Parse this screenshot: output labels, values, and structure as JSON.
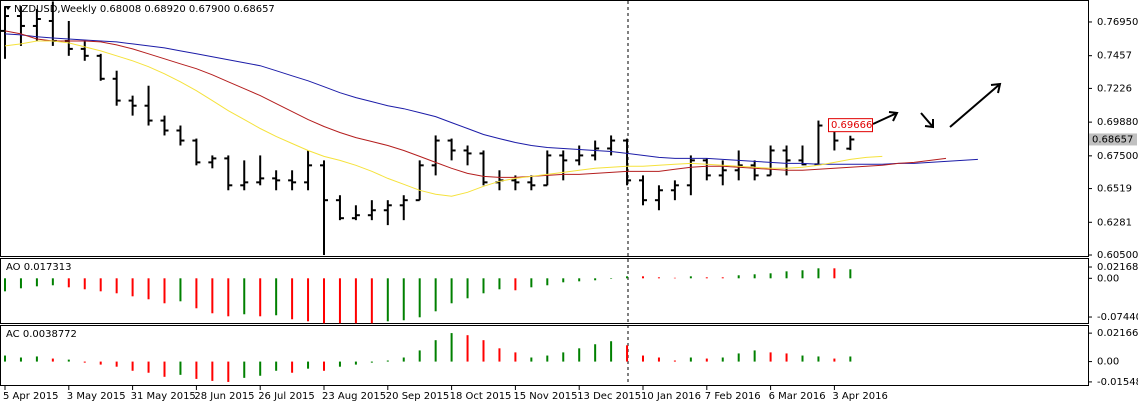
{
  "chart_data": [
    {
      "type": "ohlc",
      "title": "NZDUSD,Weekly  0.68008 0.68920 0.67900 0.68657",
      "bar_color": "#000000",
      "categories": [
        "5 Apr 2015",
        null,
        null,
        null,
        "3 May 2015",
        null,
        null,
        null,
        "31 May 2015",
        null,
        null,
        null,
        "28 Jun 2015",
        null,
        null,
        null,
        "26 Jul 2015",
        null,
        null,
        null,
        "23 Aug 2015",
        null,
        null,
        null,
        "20 Sep 2015",
        null,
        null,
        null,
        "18 Oct 2015",
        null,
        null,
        null,
        "15 Nov 2015",
        null,
        null,
        null,
        "13 Dec 2015",
        null,
        null,
        null,
        "10 Jan 2016",
        null,
        null,
        null,
        "7 Feb 2016",
        null,
        null,
        null,
        "6 Mar 2016",
        null,
        null,
        null,
        "3 Apr 2016",
        null,
        null,
        null,
        null,
        null,
        null,
        null,
        null,
        null
      ],
      "open": [
        0.7632,
        0.7737,
        0.7667,
        0.7702,
        0.7561,
        0.7505,
        0.7456,
        0.7294,
        0.714,
        0.7104,
        0.6999,
        0.6929,
        0.6858,
        0.6704,
        0.6732,
        0.6542,
        0.6563,
        0.6591,
        0.6577,
        0.6563,
        0.6683,
        0.6437,
        0.631,
        0.6331,
        0.6366,
        0.6401,
        0.6437,
        0.6683,
        0.6858,
        0.6788,
        0.6767,
        0.6563,
        0.6577,
        0.6563,
        0.6542,
        0.6753,
        0.6718,
        0.6753,
        0.6802,
        0.6858,
        0.6577,
        0.6437,
        0.6507,
        0.6542,
        0.6718,
        0.6612,
        0.6648,
        0.6683,
        0.6612,
        0.6788,
        0.6718,
        0.669,
        0.6964,
        0.68008,
        null,
        null,
        null,
        null,
        null,
        null,
        null,
        null
      ],
      "high": [
        0.7807,
        0.7807,
        0.7786,
        0.784,
        0.7702,
        0.7561,
        0.747,
        0.7351,
        0.7175,
        0.7245,
        0.7034,
        0.6964,
        0.6872,
        0.6753,
        0.6753,
        0.6718,
        0.6753,
        0.6648,
        0.6648,
        0.6788,
        0.6718,
        0.6472,
        0.6401,
        0.6437,
        0.6437,
        0.6472,
        0.6718,
        0.6894,
        0.6872,
        0.6823,
        0.6788,
        0.6648,
        0.6612,
        0.6612,
        0.6788,
        0.6788,
        0.6823,
        0.6858,
        0.6894,
        0.6872,
        0.6612,
        0.6542,
        0.6577,
        0.6753,
        0.6732,
        0.6718,
        0.6788,
        0.6718,
        0.6823,
        0.6823,
        0.6823,
        0.6999,
        0.6985,
        0.6892,
        null,
        null,
        null,
        null,
        null,
        null,
        null,
        null
      ],
      "low": [
        0.7435,
        0.7526,
        0.7561,
        0.7526,
        0.7456,
        0.7421,
        0.728,
        0.7104,
        0.7034,
        0.6964,
        0.6894,
        0.6823,
        0.6683,
        0.6662,
        0.6507,
        0.6507,
        0.6542,
        0.6507,
        0.6507,
        0.6507,
        0.605,
        0.6296,
        0.6296,
        0.6296,
        0.6261,
        0.6296,
        0.6437,
        0.6612,
        0.6718,
        0.6683,
        0.6542,
        0.6507,
        0.6507,
        0.6507,
        0.6542,
        0.6577,
        0.6683,
        0.6718,
        0.6753,
        0.6542,
        0.6401,
        0.6366,
        0.6437,
        0.6472,
        0.6577,
        0.6542,
        0.6577,
        0.6577,
        0.6612,
        0.6612,
        0.6683,
        0.6683,
        0.6788,
        0.679,
        null,
        null,
        null,
        null,
        null,
        null,
        null,
        null
      ],
      "close": [
        0.7737,
        0.7667,
        0.7716,
        0.7561,
        0.7505,
        0.7456,
        0.7294,
        0.714,
        0.7104,
        0.6999,
        0.6929,
        0.6858,
        0.6704,
        0.6732,
        0.6542,
        0.6563,
        0.6591,
        0.6577,
        0.6563,
        0.6683,
        0.6437,
        0.631,
        0.6331,
        0.6366,
        0.6401,
        0.6437,
        0.6683,
        0.6858,
        0.6788,
        0.6767,
        0.6563,
        0.6577,
        0.6563,
        0.6542,
        0.6753,
        0.6718,
        0.6753,
        0.6802,
        0.6858,
        0.6577,
        0.6437,
        0.6507,
        0.6542,
        0.6718,
        0.6612,
        0.6648,
        0.6683,
        0.6612,
        0.6788,
        0.6718,
        0.669,
        0.6964,
        0.6858,
        0.68657,
        null,
        null,
        null,
        null,
        null,
        null,
        null,
        null
      ],
      "lines": [
        {
          "color": "#1c1ca8",
          "values": [
            0.7611,
            0.7604,
            0.759,
            0.7582,
            0.7575,
            0.7568,
            0.7561,
            0.7554,
            0.754,
            0.7526,
            0.7512,
            0.7491,
            0.747,
            0.7449,
            0.7428,
            0.7407,
            0.7386,
            0.7351,
            0.7315,
            0.728,
            0.7238,
            0.7196,
            0.7161,
            0.7133,
            0.7104,
            0.7083,
            0.7055,
            0.7027,
            0.6985,
            0.6943,
            0.6901,
            0.6872,
            0.6844,
            0.6823,
            0.6809,
            0.6802,
            0.6795,
            0.6788,
            0.6781,
            0.6767,
            0.6753,
            0.6739,
            0.6732,
            0.6732,
            0.6732,
            0.6725,
            0.6718,
            0.6711,
            0.6704,
            0.6697,
            0.6697,
            0.669,
            0.669,
            0.669,
            0.669,
            0.669,
            0.6697,
            0.6697,
            0.6704,
            0.6711,
            0.6718,
            0.6725
          ]
        },
        {
          "color": "#b41e1e",
          "values": [
            0.7632,
            0.7611,
            0.7575,
            0.7561,
            0.7561,
            0.7561,
            0.7554,
            0.7533,
            0.7505,
            0.747,
            0.7435,
            0.74,
            0.7365,
            0.7322,
            0.7273,
            0.7224,
            0.7175,
            0.7119,
            0.7062,
            0.7006,
            0.6957,
            0.6915,
            0.6879,
            0.6851,
            0.6823,
            0.6788,
            0.6746,
            0.6704,
            0.6662,
            0.6626,
            0.6605,
            0.6598,
            0.6598,
            0.6605,
            0.6612,
            0.6619,
            0.6619,
            0.6626,
            0.6633,
            0.664,
            0.664,
            0.664,
            0.6655,
            0.6669,
            0.6676,
            0.6676,
            0.6669,
            0.6662,
            0.6655,
            0.6648,
            0.6648,
            0.6655,
            0.6662,
            0.6669,
            0.6676,
            0.6683,
            0.6697,
            0.6704,
            0.6718,
            0.6732,
            null,
            null
          ]
        },
        {
          "color": "#f5e23c",
          "values": [
            0.7526,
            0.754,
            0.7561,
            0.7561,
            0.7547,
            0.7519,
            0.7491,
            0.7456,
            0.7421,
            0.7379,
            0.7329,
            0.7273,
            0.721,
            0.714,
            0.7069,
            0.7006,
            0.6943,
            0.6887,
            0.6837,
            0.6788,
            0.6746,
            0.6718,
            0.6683,
            0.6641,
            0.6591,
            0.6549,
            0.6507,
            0.6479,
            0.6465,
            0.6493,
            0.6535,
            0.657,
            0.6591,
            0.6605,
            0.6619,
            0.6633,
            0.6648,
            0.6662,
            0.6669,
            0.6676,
            0.6676,
            0.6683,
            0.669,
            0.6697,
            0.669,
            0.6683,
            0.6676,
            0.6669,
            0.6662,
            0.6662,
            0.6669,
            0.6683,
            0.6704,
            0.6725,
            0.6739,
            0.6746,
            null,
            null,
            null,
            null,
            null,
            null
          ]
        }
      ],
      "ylim": [
        0.6036,
        0.7843
      ],
      "yticks": [
        {
          "value": 0.7695,
          "label": "0.76950"
        },
        0.7457,
        0.7226,
        {
          "value": 0.6988,
          "label": "0.69880"
        },
        {
          "value": 0.675,
          "label": "0.67500"
        },
        0.6519,
        0.6281,
        {
          "value": 0.605,
          "label": "0.60500"
        }
      ],
      "last_price": 0.68657,
      "marked_price": 0.69666
    },
    {
      "type": "bar",
      "title": "AO 0.017313",
      "values": [
        -0.025,
        -0.0192,
        -0.0154,
        -0.0134,
        -0.0173,
        -0.0211,
        -0.025,
        -0.0288,
        -0.0346,
        -0.0403,
        -0.048,
        -0.0442,
        -0.0576,
        -0.0672,
        -0.073,
        -0.0691,
        -0.073,
        -0.071,
        -0.0787,
        -0.0826,
        -0.0864,
        -0.0864,
        -0.0864,
        -0.0864,
        -0.0826,
        -0.0806,
        -0.0749,
        -0.0634,
        -0.048,
        -0.0384,
        -0.0288,
        -0.0211,
        -0.023,
        -0.0173,
        -0.0134,
        -0.0077,
        -0.0058,
        -0.0038,
        -0.001,
        0.0038,
        0.0038,
        0.0019,
        0.001,
        0.0038,
        0.0019,
        0.0019,
        0.0058,
        0.0077,
        0.0096,
        0.0134,
        0.0154,
        0.0192,
        0.0192,
        0.017313
      ],
      "colors": [
        "#008000",
        "#008000",
        "#008000",
        "#008000",
        "#ff0000",
        "#ff0000",
        "#ff0000",
        "#ff0000",
        "#ff0000",
        "#ff0000",
        "#ff0000",
        "#008000",
        "#ff0000",
        "#ff0000",
        "#ff0000",
        "#008000",
        "#ff0000",
        "#008000",
        "#ff0000",
        "#ff0000",
        "#ff0000",
        "#ff0000",
        "#ff0000",
        "#ff0000",
        "#008000",
        "#008000",
        "#008000",
        "#008000",
        "#008000",
        "#008000",
        "#008000",
        "#008000",
        "#ff0000",
        "#008000",
        "#008000",
        "#008000",
        "#008000",
        "#008000",
        "#008000",
        "#008000",
        "#ff0000",
        "#ff0000",
        "#ff0000",
        "#008000",
        "#ff0000",
        "#ff0000",
        "#008000",
        "#008000",
        "#008000",
        "#008000",
        "#008000",
        "#008000",
        "#ff0000",
        "#008000"
      ],
      "ylim": [
        -0.0878,
        0.0371
      ],
      "yticks": [
        0.02168,
        {
          "value": 0,
          "label": "0.00"
        },
        {
          "value": -0.0744,
          "label": "-0.07440"
        }
      ]
    },
    {
      "type": "bar",
      "title": "AC 0.0038772",
      "values": [
        0.0046,
        0.0031,
        0.0039,
        0.0023,
        0.0015,
        -0.0008,
        -0.0023,
        -0.0039,
        -0.007,
        -0.0085,
        -0.0116,
        -0.0101,
        -0.0132,
        -0.0147,
        -0.0155,
        -0.0124,
        -0.0108,
        -0.007,
        -0.0085,
        -0.0054,
        -0.007,
        -0.0039,
        -0.0023,
        -0.0008,
        0.0008,
        0.0031,
        0.0085,
        0.0163,
        0.0217,
        0.0201,
        0.0163,
        0.0101,
        0.007,
        0.0031,
        0.0046,
        0.007,
        0.0101,
        0.0132,
        0.0155,
        0.0124,
        0.0046,
        0.0031,
        0.0008,
        0.0031,
        0.0023,
        0.0031,
        0.0062,
        0.0085,
        0.007,
        0.0062,
        0.0046,
        0.0039,
        0.0023,
        0.0038772
      ],
      "colors": [
        "#008000",
        "#008000",
        "#008000",
        "#ff0000",
        "#008000",
        "#ff0000",
        "#ff0000",
        "#ff0000",
        "#ff0000",
        "#ff0000",
        "#ff0000",
        "#008000",
        "#ff0000",
        "#ff0000",
        "#ff0000",
        "#008000",
        "#008000",
        "#008000",
        "#ff0000",
        "#008000",
        "#ff0000",
        "#008000",
        "#008000",
        "#008000",
        "#008000",
        "#008000",
        "#008000",
        "#008000",
        "#008000",
        "#ff0000",
        "#ff0000",
        "#ff0000",
        "#ff0000",
        "#008000",
        "#008000",
        "#008000",
        "#008000",
        "#008000",
        "#008000",
        "#ff0000",
        "#ff0000",
        "#ff0000",
        "#ff0000",
        "#008000",
        "#ff0000",
        "#008000",
        "#008000",
        "#008000",
        "#ff0000",
        "#ff0000",
        "#008000",
        "#008000",
        "#ff0000",
        "#008000"
      ],
      "ylim": [
        -0.0186,
        0.0271
      ],
      "yticks": [
        0.02166,
        {
          "value": 0,
          "label": "0.00"
        },
        {
          "value": -0.01548,
          "label": "-0.01548"
        }
      ]
    }
  ]
}
